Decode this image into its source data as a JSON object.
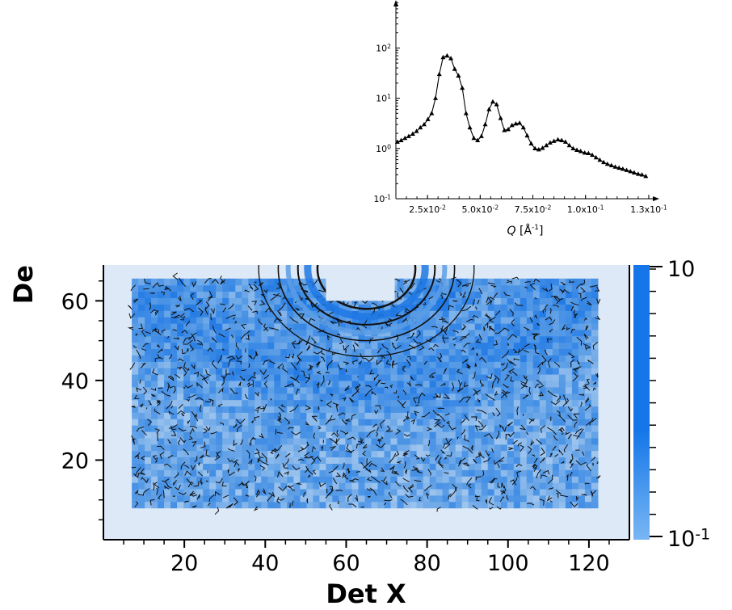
{
  "chart_data": [
    {
      "type": "scatter",
      "x_axis": {
        "label": "Q [Å⁻¹]",
        "range": [
          0.01,
          0.135
        ],
        "ticks": [
          {
            "value": 0.025,
            "mantissa": "2.5x10",
            "exp": "-2"
          },
          {
            "value": 0.05,
            "mantissa": "5.0x10",
            "exp": "-2"
          },
          {
            "value": 0.075,
            "mantissa": "7.5x10",
            "exp": "-2"
          },
          {
            "value": 0.1,
            "mantissa": "1.0x10",
            "exp": "-1"
          },
          {
            "value": 0.13,
            "mantissa": "1.3x10",
            "exp": "-1"
          }
        ]
      },
      "y_axis": {
        "scale": "log",
        "range": [
          0.1,
          900
        ],
        "ticks": [
          {
            "value": 0.1,
            "base": "10",
            "exp": "-1"
          },
          {
            "value": 1,
            "base": "10",
            "exp": "0"
          },
          {
            "value": 10,
            "base": "10",
            "exp": "1"
          },
          {
            "value": 100,
            "base": "10",
            "exp": "2"
          }
        ]
      },
      "marker": "triangle",
      "points": [
        {
          "x": 0.0107,
          "y": 1.35
        },
        {
          "x": 0.0125,
          "y": 1.45
        },
        {
          "x": 0.0143,
          "y": 1.6
        },
        {
          "x": 0.0161,
          "y": 1.75
        },
        {
          "x": 0.018,
          "y": 1.95
        },
        {
          "x": 0.0198,
          "y": 2.2
        },
        {
          "x": 0.0216,
          "y": 2.6
        },
        {
          "x": 0.0234,
          "y": 3.0
        },
        {
          "x": 0.0252,
          "y": 3.8
        },
        {
          "x": 0.027,
          "y": 5.0
        },
        {
          "x": 0.0288,
          "y": 10.0
        },
        {
          "x": 0.0306,
          "y": 30.0
        },
        {
          "x": 0.0324,
          "y": 65.0
        },
        {
          "x": 0.0343,
          "y": 70.0
        },
        {
          "x": 0.0361,
          "y": 62.0
        },
        {
          "x": 0.0379,
          "y": 38.0
        },
        {
          "x": 0.0397,
          "y": 28.0
        },
        {
          "x": 0.0415,
          "y": 16.0
        },
        {
          "x": 0.0433,
          "y": 5.0
        },
        {
          "x": 0.0451,
          "y": 2.6
        },
        {
          "x": 0.047,
          "y": 1.6
        },
        {
          "x": 0.0488,
          "y": 1.45
        },
        {
          "x": 0.0506,
          "y": 1.75
        },
        {
          "x": 0.0524,
          "y": 3.0
        },
        {
          "x": 0.0542,
          "y": 6.0
        },
        {
          "x": 0.056,
          "y": 8.5
        },
        {
          "x": 0.0578,
          "y": 7.5
        },
        {
          "x": 0.0597,
          "y": 4.0
        },
        {
          "x": 0.0615,
          "y": 2.3
        },
        {
          "x": 0.0633,
          "y": 2.4
        },
        {
          "x": 0.0651,
          "y": 2.9
        },
        {
          "x": 0.0669,
          "y": 3.1
        },
        {
          "x": 0.0687,
          "y": 3.2
        },
        {
          "x": 0.0705,
          "y": 2.6
        },
        {
          "x": 0.0723,
          "y": 1.8
        },
        {
          "x": 0.0742,
          "y": 1.25
        },
        {
          "x": 0.076,
          "y": 1.0
        },
        {
          "x": 0.0778,
          "y": 0.95
        },
        {
          "x": 0.0796,
          "y": 1.02
        },
        {
          "x": 0.0814,
          "y": 1.15
        },
        {
          "x": 0.0832,
          "y": 1.3
        },
        {
          "x": 0.085,
          "y": 1.4
        },
        {
          "x": 0.0869,
          "y": 1.5
        },
        {
          "x": 0.0887,
          "y": 1.45
        },
        {
          "x": 0.0905,
          "y": 1.35
        },
        {
          "x": 0.0923,
          "y": 1.15
        },
        {
          "x": 0.0941,
          "y": 1.0
        },
        {
          "x": 0.0959,
          "y": 0.93
        },
        {
          "x": 0.0977,
          "y": 0.88
        },
        {
          "x": 0.0996,
          "y": 0.82
        },
        {
          "x": 0.1014,
          "y": 0.8
        },
        {
          "x": 0.1032,
          "y": 0.74
        },
        {
          "x": 0.105,
          "y": 0.66
        },
        {
          "x": 0.1068,
          "y": 0.59
        },
        {
          "x": 0.1086,
          "y": 0.53
        },
        {
          "x": 0.1104,
          "y": 0.49
        },
        {
          "x": 0.1123,
          "y": 0.46
        },
        {
          "x": 0.1141,
          "y": 0.43
        },
        {
          "x": 0.1159,
          "y": 0.41
        },
        {
          "x": 0.1177,
          "y": 0.39
        },
        {
          "x": 0.1195,
          "y": 0.37
        },
        {
          "x": 0.1213,
          "y": 0.35
        },
        {
          "x": 0.1231,
          "y": 0.33
        },
        {
          "x": 0.125,
          "y": 0.31
        },
        {
          "x": 0.1268,
          "y": 0.3
        },
        {
          "x": 0.1286,
          "y": 0.28
        }
      ]
    },
    {
      "type": "heatmap",
      "x_axis": {
        "label": "Det X",
        "range": [
          0,
          130
        ],
        "tick_labels": [
          20,
          40,
          60,
          80,
          100,
          120
        ]
      },
      "y_axis": {
        "label": "De",
        "range": [
          0,
          69
        ],
        "tick_labels": [
          20,
          40,
          60
        ]
      },
      "colorbar": {
        "scale": "log",
        "labels": [
          {
            "value": 10,
            "base": "10",
            "exp": ""
          },
          {
            "value": 0.1,
            "base": "10",
            "exp": "-1"
          }
        ]
      },
      "ring_center": [
        65,
        68
      ],
      "beamstop": {
        "x": [
          55,
          72
        ],
        "y": [
          60,
          69
        ]
      },
      "data_region": {
        "x": [
          7,
          122
        ],
        "y": [
          8,
          65
        ]
      },
      "contours": "on",
      "colors": {
        "background": "#dde9f6",
        "light": "#c6dcf3",
        "mid": "#5c9ee6",
        "strong": "#1f78e4",
        "colorbar_strong": "#1476e8",
        "colorbar_light": "#78b6f4"
      }
    }
  ]
}
